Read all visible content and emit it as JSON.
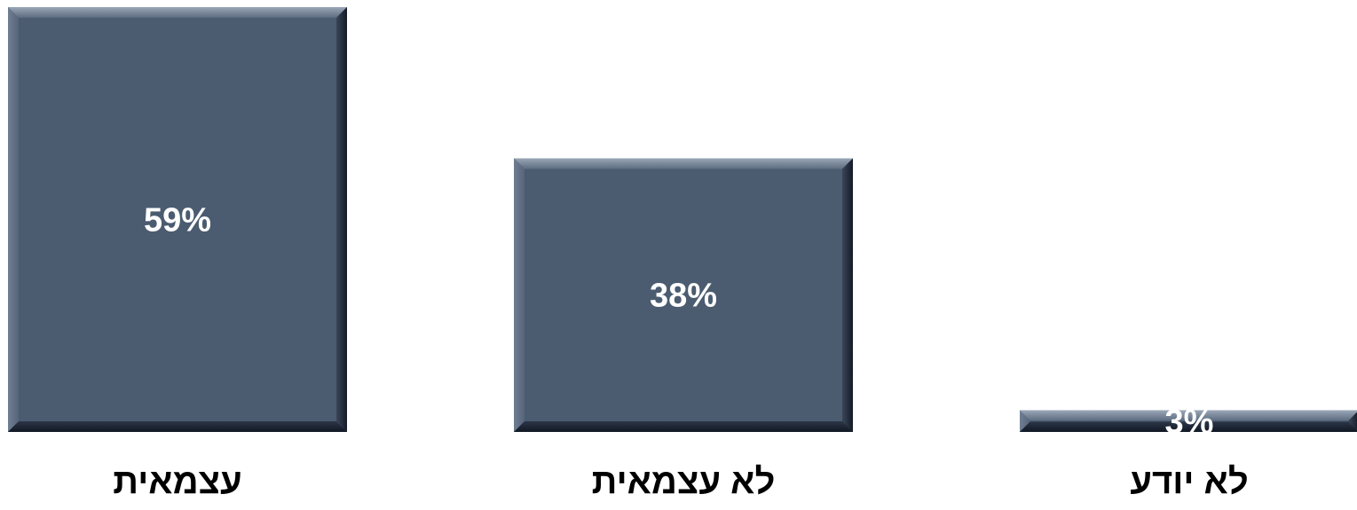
{
  "chart_data": {
    "type": "bar",
    "categories": [
      "עצמאית",
      "לא עצמאית",
      "לא יודע"
    ],
    "values": [
      59,
      38,
      3
    ],
    "value_labels": [
      "59%",
      "38%",
      "3%"
    ],
    "unit": "%",
    "ylim": [
      0,
      59
    ],
    "grid": false,
    "legend": "none",
    "colors": {
      "bar": "#4b5b70",
      "bar_highlight": "#8896a8",
      "bar_shadow": "#1c2533",
      "value_text": "#ffffff",
      "category_text": "#000000",
      "background": "#ffffff"
    }
  }
}
